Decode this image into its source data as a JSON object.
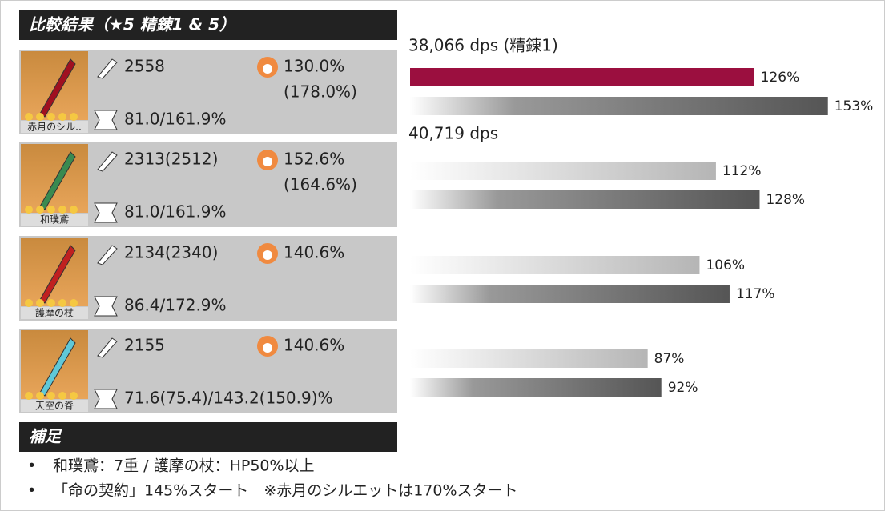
{
  "header": {
    "title": "比較結果（★5 精錬1 & 5）"
  },
  "weapons": [
    {
      "name": "赤月のシル..",
      "atk": "2558",
      "stat": "130.0%",
      "stat_sub": "(178.0%)",
      "crit": "81.0/161.9%"
    },
    {
      "name": "和璞鳶",
      "atk": "2313(2512)",
      "stat": "152.6%",
      "stat_sub": "(164.6%)",
      "crit": "81.0/161.9%"
    },
    {
      "name": "護摩の杖",
      "atk": "2134(2340)",
      "stat": "140.6%",
      "crit": "86.4/172.9%"
    },
    {
      "name": "天空の脊",
      "atk": "2155",
      "stat": "140.6%",
      "crit": "71.6(75.4)/143.2(150.9)%"
    }
  ],
  "dps": [
    "38,066 dps (精錬1)",
    "40,719 dps"
  ],
  "bars": {
    "refine1": {
      "values": [
        126,
        112,
        106,
        87
      ],
      "value_labels": [
        "126%",
        "112%",
        "106%",
        "87%"
      ]
    },
    "refine5": {
      "values": [
        153,
        128,
        117,
        92
      ],
      "value_labels": [
        "153%",
        "128%",
        "117%",
        "92%"
      ]
    }
  },
  "notes": {
    "title": "補足",
    "items": [
      "和璞鳶：7重 / 護摩の杖：HP50%以上",
      "「命の契約」145%スタート　※赤月のシルエットは170%スタート"
    ]
  }
}
